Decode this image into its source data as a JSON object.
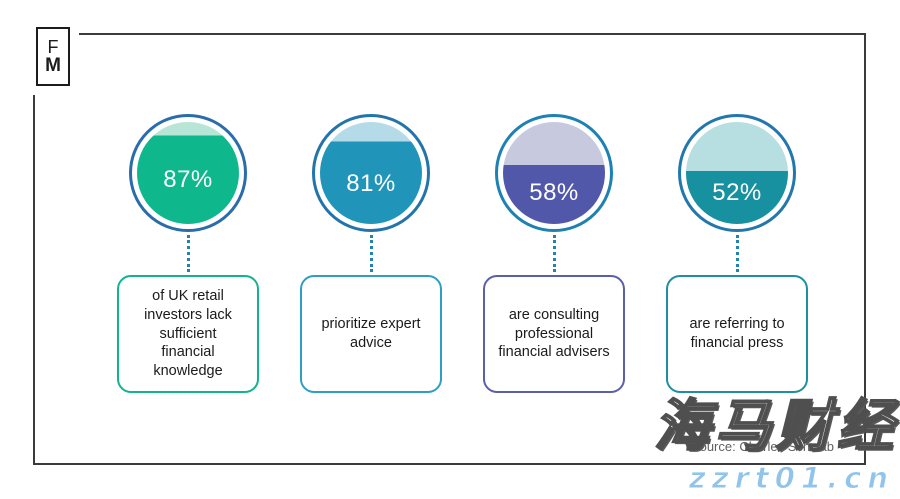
{
  "logo": {
    "line1": "F",
    "line2": "M"
  },
  "source_label": "Source: Charles Schwab",
  "watermark": {
    "brand": "海马财经",
    "url": "zzrt01.cn"
  },
  "colors": {
    "frame_border": "#3b3b3b",
    "connector": "#2383ad",
    "percent_text": "#ffffff",
    "box_text": "#1b1b1b",
    "source_text": "#5f5f5f",
    "watermark_url": "#90c4eb"
  },
  "chart_data": {
    "type": "pie",
    "subtype": "percentage-filled circle gauges",
    "title": "",
    "source": "Source: Charles Schwab",
    "items": [
      {
        "value": 87,
        "display": "87%",
        "label": "of UK retail investors lack sufficient financial knowledge",
        "fill": "#0fb78c",
        "fill_light": "#b7e6d6",
        "ring": "#2b6cab",
        "box_border": "#12b48e"
      },
      {
        "value": 81,
        "display": "81%",
        "label": "prioritize expert advice",
        "fill": "#2095b9",
        "fill_light": "#b5dbe9",
        "ring": "#2374aa",
        "box_border": "#2e9fc3"
      },
      {
        "value": 58,
        "display": "58%",
        "label": "are consulting professional financial advisers",
        "fill": "#5158a9",
        "fill_light": "#c7c9df",
        "ring": "#1e81b3",
        "box_border": "#5b5fa9"
      },
      {
        "value": 52,
        "display": "52%",
        "label": "are referring to financial press",
        "fill": "#17909f",
        "fill_light": "#b7dee1",
        "ring": "#2277ad",
        "box_border": "#1d8fa0"
      }
    ]
  }
}
